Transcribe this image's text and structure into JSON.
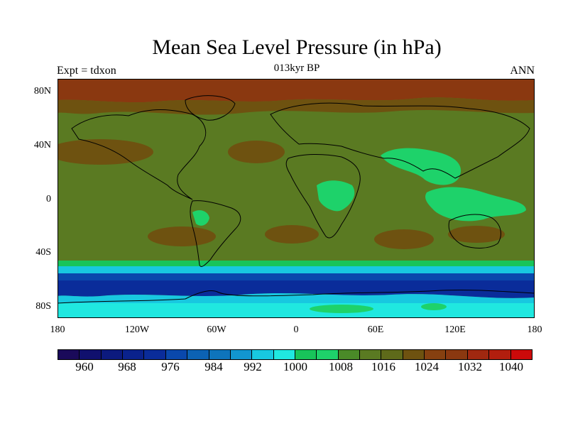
{
  "header": {
    "title": "Mean Sea Level Pressure (in hPa)",
    "subtitle": "013kyr BP",
    "left_label": "Expt = tdxon",
    "right_label": "ANN"
  },
  "axes": {
    "y_ticks": [
      "80N",
      "40N",
      "0",
      "40S",
      "80S"
    ],
    "x_ticks": [
      "180",
      "120W",
      "60W",
      "0",
      "60E",
      "120E",
      "180"
    ]
  },
  "colorbar": {
    "labels": [
      "960",
      "968",
      "976",
      "984",
      "992",
      "1000",
      "1008",
      "1016",
      "1024",
      "1032",
      "1040"
    ],
    "colors": [
      "#1a0a5a",
      "#10106e",
      "#0c1a7e",
      "#0a228c",
      "#0a2c9a",
      "#0a48ac",
      "#0c62b4",
      "#0e74bc",
      "#1296d0",
      "#18c8e0",
      "#20e8e0",
      "#18c45a",
      "#1ed26a",
      "#4a8a28",
      "#5a7a22",
      "#5e6a1a",
      "#6e5210",
      "#864010",
      "#8a3810",
      "#a02810",
      "#b21e0e",
      "#cc0a0a"
    ]
  },
  "map_colors": {
    "polar_high": "#8a3810",
    "subtropical_high": "#6e5210",
    "mid_pressure": "#5a7a22",
    "low_land": "#1ed26a",
    "southern_ocean_mid": "#0a48ac",
    "southern_ocean_deep": "#0a2c9a",
    "antarctic": "#20e8e0",
    "band_cyan": "#18c8e0",
    "band_green": "#18c45a",
    "coast": "#000000"
  }
}
